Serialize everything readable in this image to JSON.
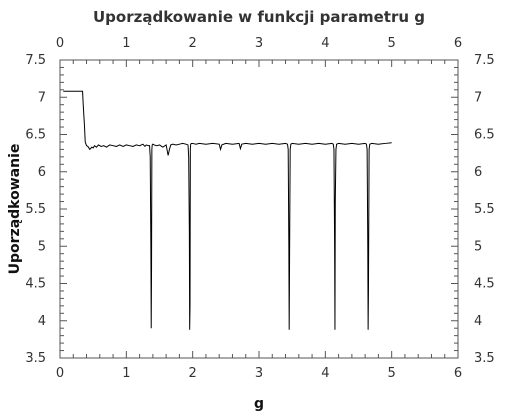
{
  "chart_data": {
    "type": "line",
    "title": "Uporządkowanie w funkcji parametru g",
    "xlabel": "g",
    "ylabel": "Uporządkowanie",
    "xlim": [
      0,
      6
    ],
    "ylim": [
      3.5,
      7.5
    ],
    "xticks": [
      0,
      1,
      2,
      3,
      4,
      5,
      6
    ],
    "xtick_labels": [
      "0",
      "1",
      "2",
      "3",
      "4",
      "5",
      "6"
    ],
    "yticks": [
      3.5,
      4,
      4.5,
      5,
      5.5,
      6,
      6.5,
      7,
      7.5
    ],
    "ytick_labels": [
      "3.5",
      "4",
      "4.5",
      "5",
      "5.5",
      "6",
      "6.5",
      "7",
      "7.5"
    ],
    "grid": false,
    "legend": false,
    "line_color": "#000000",
    "series": [
      {
        "x": [
          0.05,
          0.34,
          0.35,
          0.37,
          0.38,
          0.4,
          0.42,
          0.45,
          0.48,
          0.5,
          0.52,
          0.55,
          0.58,
          0.62,
          0.66,
          0.7,
          0.75,
          0.8,
          0.85,
          0.9,
          0.95,
          1.0,
          1.05,
          1.1,
          1.15,
          1.2,
          1.25,
          1.28,
          1.3,
          1.33,
          1.35,
          1.36,
          1.37,
          1.375,
          1.38,
          1.385,
          1.39,
          1.4,
          1.42,
          1.46,
          1.5,
          1.55,
          1.6,
          1.63,
          1.65,
          1.67,
          1.7,
          1.75,
          1.8,
          1.85,
          1.9,
          1.93,
          1.94,
          1.95,
          1.955,
          1.96,
          1.965,
          1.97,
          1.98,
          2.0,
          2.05,
          2.1,
          2.2,
          2.3,
          2.4,
          2.42,
          2.44,
          2.5,
          2.6,
          2.7,
          2.72,
          2.74,
          2.8,
          2.9,
          3.0,
          3.1,
          3.2,
          3.3,
          3.4,
          3.43,
          3.44,
          3.45,
          3.455,
          3.46,
          3.47,
          3.48,
          3.5,
          3.6,
          3.7,
          3.8,
          3.9,
          4.0,
          4.1,
          4.12,
          4.13,
          4.14,
          4.145,
          4.15,
          4.16,
          4.17,
          4.2,
          4.3,
          4.4,
          4.5,
          4.6,
          4.62,
          4.63,
          4.64,
          4.645,
          4.65,
          4.66,
          4.67,
          4.7,
          4.8,
          4.9,
          5.0
        ],
        "y": [
          7.08,
          7.08,
          6.9,
          6.6,
          6.4,
          6.35,
          6.34,
          6.3,
          6.33,
          6.32,
          6.35,
          6.33,
          6.36,
          6.34,
          6.35,
          6.33,
          6.36,
          6.35,
          6.34,
          6.36,
          6.34,
          6.36,
          6.35,
          6.34,
          6.36,
          6.35,
          6.37,
          6.34,
          6.36,
          6.35,
          6.35,
          6.2,
          5.0,
          3.9,
          4.7,
          6.3,
          6.36,
          6.37,
          6.36,
          6.35,
          6.36,
          6.33,
          6.36,
          6.22,
          6.3,
          6.36,
          6.37,
          6.36,
          6.37,
          6.38,
          6.37,
          6.36,
          6.2,
          5.2,
          3.88,
          4.2,
          6.3,
          6.37,
          6.38,
          6.38,
          6.37,
          6.38,
          6.37,
          6.38,
          6.37,
          6.3,
          6.36,
          6.38,
          6.37,
          6.38,
          6.31,
          6.37,
          6.38,
          6.37,
          6.38,
          6.37,
          6.38,
          6.37,
          6.38,
          6.37,
          6.3,
          5.0,
          3.88,
          4.7,
          6.3,
          6.37,
          6.38,
          6.37,
          6.38,
          6.37,
          6.38,
          6.37,
          6.38,
          6.37,
          6.3,
          5.0,
          3.88,
          5.6,
          6.3,
          6.37,
          6.38,
          6.37,
          6.38,
          6.37,
          6.38,
          6.37,
          6.3,
          5.0,
          3.88,
          4.4,
          6.3,
          6.37,
          6.38,
          6.37,
          6.38,
          6.39
        ]
      }
    ]
  }
}
